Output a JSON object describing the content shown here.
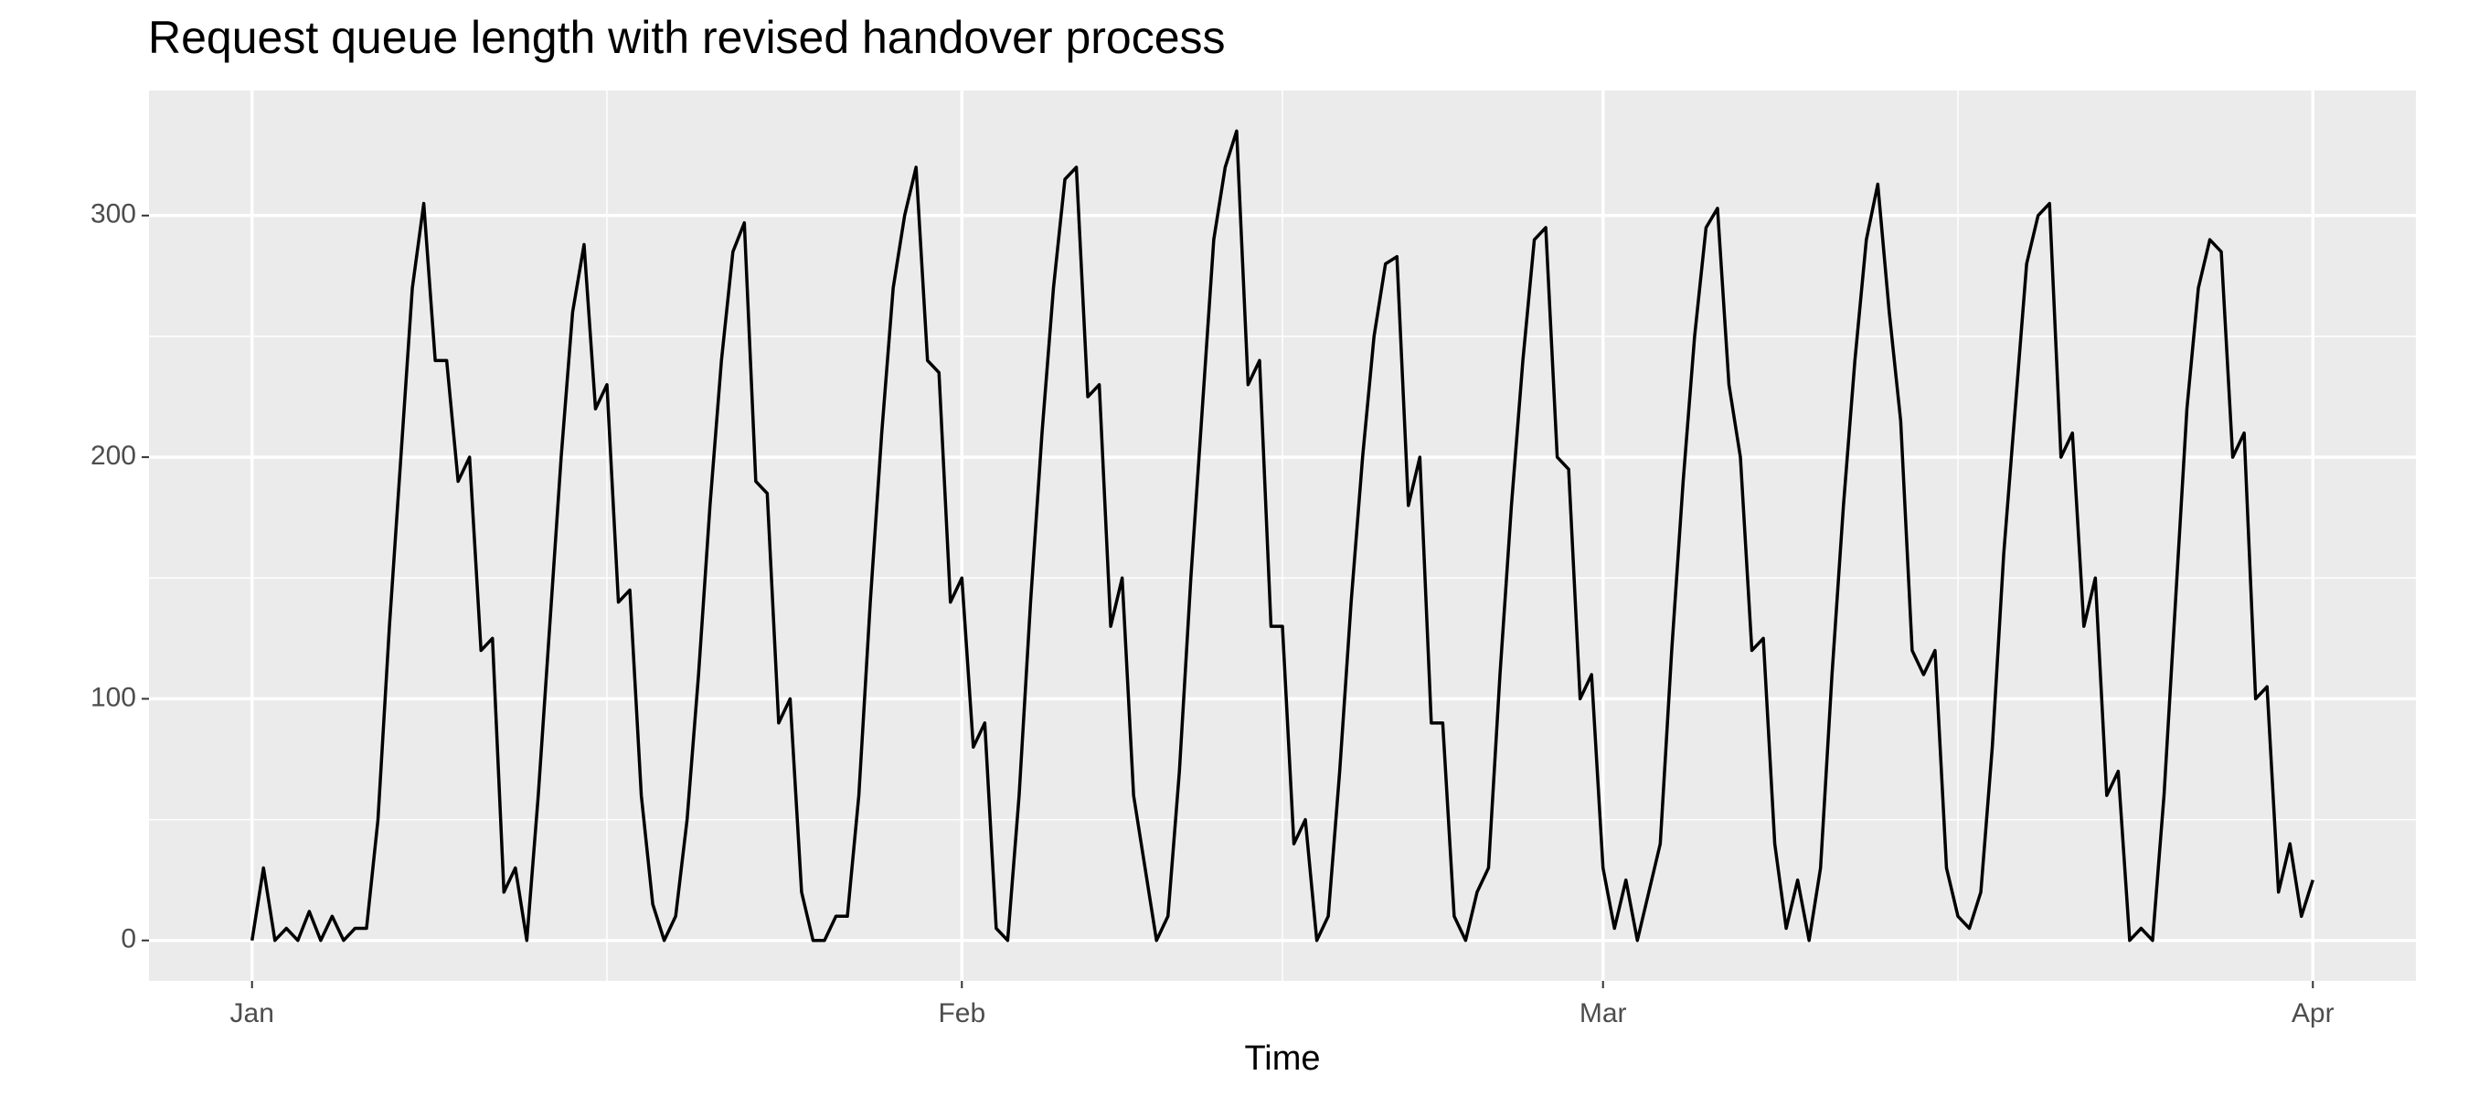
{
  "chart_data": {
    "type": "line",
    "title": "Request queue length with revised handover process",
    "x_label": "Time",
    "x": [
      0,
      0.5,
      1,
      1.5,
      2,
      2.5,
      3,
      3.5,
      4,
      4.5,
      5,
      5.5,
      6,
      6.5,
      7,
      7.5,
      8,
      8.5,
      9,
      9.5,
      10,
      10.5,
      11,
      11.5,
      12,
      12.5,
      13,
      13.5,
      14,
      14.5,
      15,
      15.5,
      16,
      16.5,
      17,
      17.5,
      18,
      18.5,
      19,
      19.5,
      20,
      20.5,
      21,
      21.5,
      22,
      22.5,
      23,
      23.5,
      24,
      24.5,
      25,
      25.5,
      26,
      26.5,
      27,
      27.5,
      28,
      28.5,
      29,
      29.5,
      30,
      30.5,
      31,
      31.5,
      32,
      32.5,
      33,
      33.5,
      34,
      34.5,
      35,
      35.5,
      36,
      36.5,
      37,
      37.5,
      38,
      38.5,
      39,
      39.5,
      40,
      40.5,
      41,
      41.5,
      42,
      42.5,
      43,
      43.5,
      44,
      44.5,
      45,
      45.5,
      46,
      46.5,
      47,
      47.5,
      48,
      48.5,
      49,
      49.5,
      50,
      50.5,
      51,
      51.5,
      52,
      52.5,
      53,
      53.5,
      54,
      54.5,
      55,
      55.5,
      56,
      56.5,
      57,
      57.5,
      58,
      58.5,
      59,
      59.5,
      60,
      60.5,
      61,
      61.5,
      62,
      62.5,
      63,
      63.5,
      64,
      64.5,
      65,
      65.5,
      66,
      66.5,
      67,
      67.5,
      68,
      68.5,
      69,
      69.5,
      70,
      70.5,
      71,
      71.5,
      72,
      72.5,
      73,
      73.5,
      74,
      74.5,
      75,
      75.5,
      76,
      76.5,
      77,
      77.5,
      78,
      78.5,
      79,
      79.5,
      80,
      80.5,
      81,
      81.5,
      82,
      82.5,
      83,
      83.5,
      84,
      84.5,
      85,
      85.5,
      86,
      86.5,
      87,
      87.5,
      88,
      88.5,
      89,
      89.5,
      90
    ],
    "values": [
      0,
      30,
      0,
      5,
      0,
      12,
      0,
      10,
      0,
      5,
      5,
      50,
      130,
      200,
      270,
      305,
      240,
      240,
      190,
      200,
      120,
      125,
      20,
      30,
      0,
      60,
      130,
      200,
      260,
      288,
      220,
      230,
      140,
      145,
      60,
      15,
      0,
      10,
      50,
      110,
      180,
      240,
      285,
      297,
      190,
      185,
      90,
      100,
      20,
      0,
      0,
      10,
      10,
      60,
      140,
      210,
      270,
      300,
      320,
      240,
      235,
      140,
      150,
      80,
      90,
      5,
      0,
      60,
      140,
      210,
      270,
      315,
      320,
      225,
      230,
      130,
      150,
      60,
      30,
      0,
      10,
      70,
      150,
      220,
      290,
      320,
      335,
      230,
      240,
      130,
      130,
      40,
      50,
      0,
      10,
      70,
      140,
      200,
      250,
      280,
      283,
      180,
      200,
      90,
      90,
      10,
      0,
      20,
      30,
      110,
      180,
      240,
      290,
      295,
      200,
      195,
      100,
      110,
      30,
      5,
      25,
      0,
      20,
      40,
      120,
      190,
      250,
      295,
      303,
      230,
      200,
      120,
      125,
      40,
      5,
      25,
      0,
      30,
      110,
      180,
      240,
      290,
      313,
      260,
      215,
      120,
      110,
      120,
      30,
      10,
      5,
      20,
      80,
      160,
      220,
      280,
      300,
      305,
      200,
      210,
      130,
      150,
      60,
      70,
      0,
      5,
      0,
      60,
      140,
      220,
      270,
      290,
      285,
      200,
      210,
      100,
      105,
      20,
      40,
      10,
      25
    ],
    "color": "#000000",
    "xlim": [
      -4.5,
      94.5
    ],
    "xticks": [
      {
        "value": 0,
        "label": "Jan"
      },
      {
        "value": 31,
        "label": "Feb"
      },
      {
        "value": 59,
        "label": "Mar"
      },
      {
        "value": 90,
        "label": "Apr"
      }
    ],
    "xminor": [
      15.5,
      45,
      74.5
    ],
    "ylim": [
      -16.75,
      351.75
    ],
    "yticks": [
      0,
      100,
      200,
      300
    ],
    "yminor": [
      50,
      150,
      250
    ],
    "grid": true
  }
}
